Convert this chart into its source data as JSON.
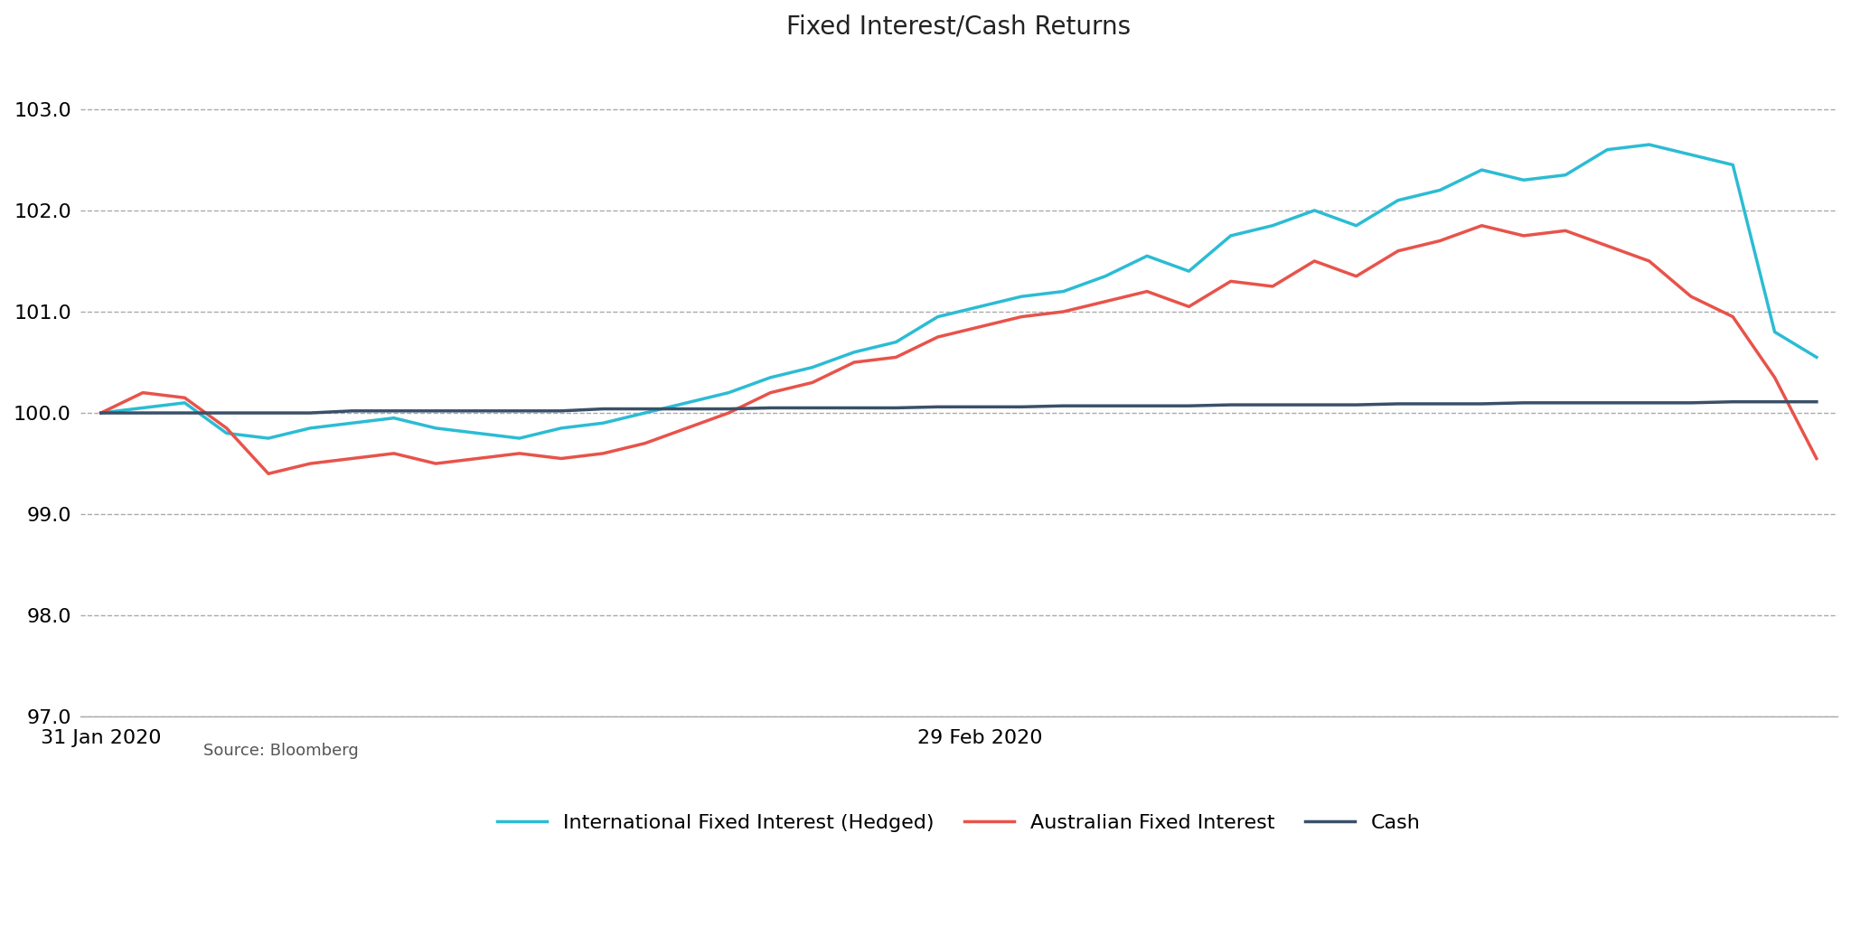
{
  "title": "Fixed Interest/Cash Returns",
  "source": "Source: Bloomberg",
  "x_tick_labels": [
    "31 Jan 2020",
    "29 Feb 2020"
  ],
  "x_tick_positions": [
    0,
    21
  ],
  "ylim": [
    97.0,
    103.5
  ],
  "yticks": [
    97.0,
    98.0,
    99.0,
    100.0,
    101.0,
    102.0,
    103.0
  ],
  "background_color": "#ffffff",
  "grid_color": "#aaaaaa",
  "aus_color": "#e8534a",
  "intl_color": "#2bbcd4",
  "cash_color": "#3a5068",
  "aus_label": "Australian Fixed Interest",
  "intl_label": "International Fixed Interest (Hedged)",
  "cash_label": "Cash",
  "aus_data": [
    100.0,
    100.2,
    100.15,
    99.85,
    99.4,
    99.5,
    99.55,
    99.6,
    99.5,
    99.55,
    99.6,
    99.55,
    99.6,
    99.7,
    99.85,
    100.0,
    100.2,
    100.3,
    100.5,
    100.55,
    100.75,
    100.85,
    100.95,
    101.0,
    101.1,
    101.2,
    101.05,
    101.3,
    101.25,
    101.5,
    101.35,
    101.6,
    101.7,
    101.85,
    101.75,
    101.8,
    101.65,
    101.5,
    101.15,
    100.95,
    100.35,
    99.55
  ],
  "intl_data": [
    100.0,
    100.05,
    100.1,
    99.8,
    99.75,
    99.85,
    99.9,
    99.95,
    99.85,
    99.8,
    99.75,
    99.85,
    99.9,
    100.0,
    100.1,
    100.2,
    100.35,
    100.45,
    100.6,
    100.7,
    100.95,
    101.05,
    101.15,
    101.2,
    101.35,
    101.55,
    101.4,
    101.75,
    101.85,
    102.0,
    101.85,
    102.1,
    102.2,
    102.4,
    102.3,
    102.35,
    102.6,
    102.65,
    102.55,
    102.45,
    100.8,
    100.55
  ],
  "cash_data": [
    100.0,
    100.0,
    100.0,
    100.0,
    100.0,
    100.0,
    100.02,
    100.02,
    100.02,
    100.02,
    100.02,
    100.02,
    100.04,
    100.04,
    100.04,
    100.04,
    100.05,
    100.05,
    100.05,
    100.05,
    100.06,
    100.06,
    100.06,
    100.07,
    100.07,
    100.07,
    100.07,
    100.08,
    100.08,
    100.08,
    100.08,
    100.09,
    100.09,
    100.09,
    100.1,
    100.1,
    100.1,
    100.1,
    100.1,
    100.11,
    100.11,
    100.11
  ],
  "n_points": 42
}
